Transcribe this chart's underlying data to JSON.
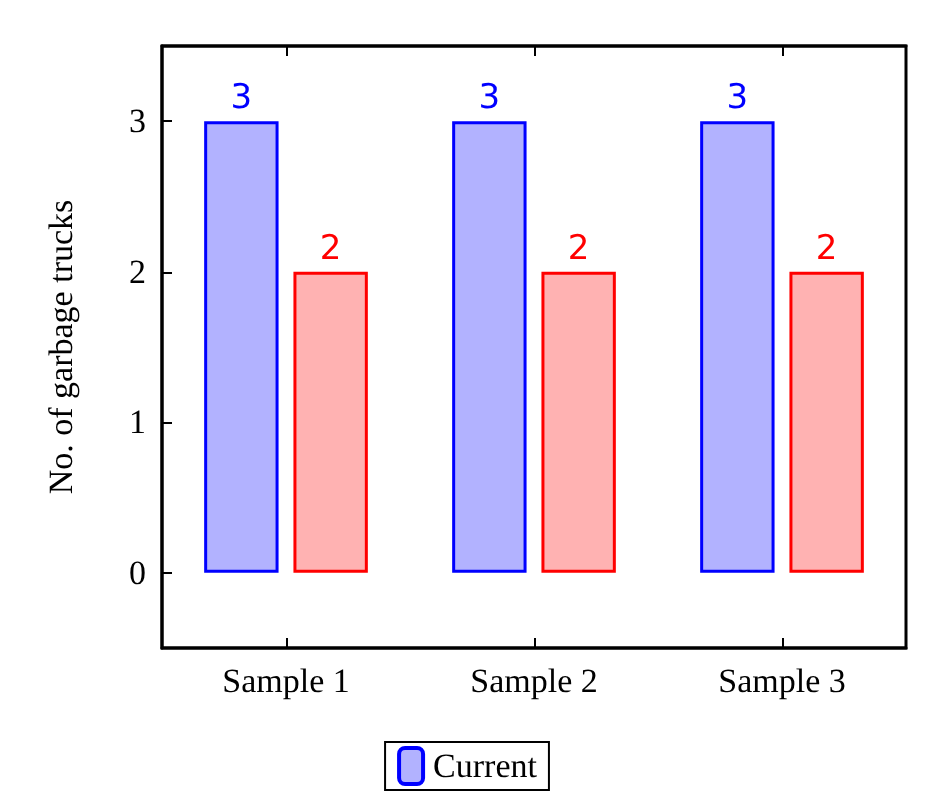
{
  "chart_data": {
    "type": "bar",
    "ylabel": "No. of garbage trucks",
    "categories": [
      "Sample 1",
      "Sample 2",
      "Sample 3"
    ],
    "series": [
      {
        "name": "Current",
        "color": "#0000ff",
        "values": [
          3,
          3,
          3
        ]
      },
      {
        "color": "#ff0000",
        "values": [
          2,
          2,
          2
        ]
      }
    ],
    "ylim": [
      -0.5,
      3.5
    ],
    "yticks": [
      0,
      1,
      2,
      3
    ],
    "grid": false,
    "legend": "bottom",
    "data_labels": true
  }
}
